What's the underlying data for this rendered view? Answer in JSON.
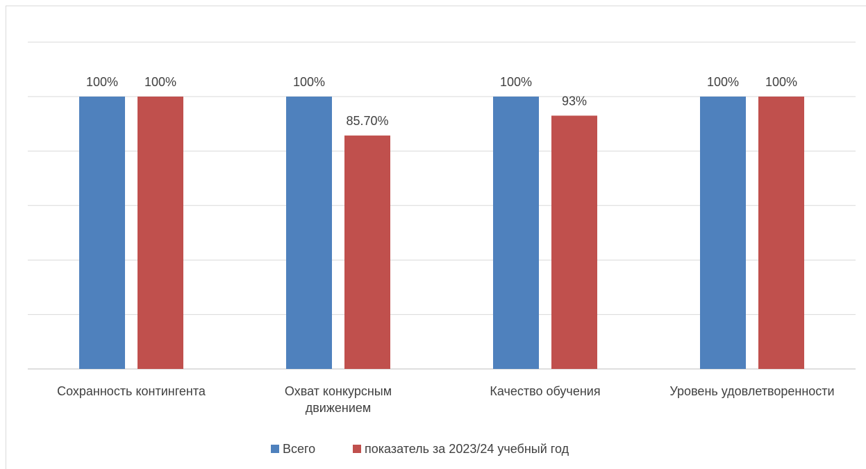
{
  "chart_data": {
    "type": "bar",
    "title": "",
    "xlabel": "",
    "ylabel": "",
    "ylim": [
      0,
      125
    ],
    "grid": true,
    "legend_position": "bottom",
    "categories": [
      [
        "Сохранность контингента"
      ],
      [
        "Охват конкурсным",
        "движением"
      ],
      [
        "Качество обучения"
      ],
      [
        "Уровень удовлетворенности"
      ]
    ],
    "series": [
      {
        "name": "Всего",
        "color": "#4f81bd",
        "values": [
          100,
          100,
          100,
          100
        ],
        "labels": [
          "100%",
          "100%",
          "100%",
          "100%"
        ]
      },
      {
        "name": "показатель за 2023/24 учебный год",
        "color": "#c0504d",
        "values": [
          100,
          85.7,
          93,
          100
        ],
        "labels": [
          "100%",
          "85.70%",
          "93%",
          "100%"
        ]
      }
    ]
  }
}
